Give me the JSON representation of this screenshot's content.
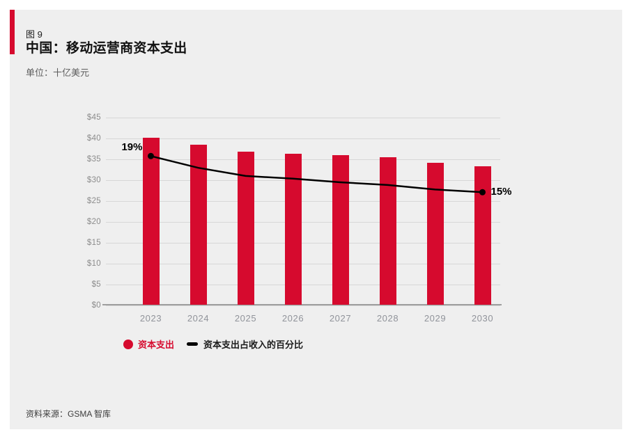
{
  "figure": {
    "label": "图 9",
    "title": "中国：移动运营商资本支出",
    "unit": "单位：十亿美元",
    "source": "资料来源：GSMA 智库",
    "accent_color": "#d60a2e",
    "panel_background": "#efefef"
  },
  "chart_data": {
    "type": "bar",
    "title": "中国：移动运营商资本支出",
    "ylabel": "单位：十亿美元",
    "categories": [
      "2023",
      "2024",
      "2025",
      "2026",
      "2027",
      "2028",
      "2029",
      "2030"
    ],
    "series": [
      {
        "name": "资本支出",
        "type": "bar",
        "color": "#d60a2e",
        "values": [
          40,
          38.3,
          36.7,
          36.2,
          35.8,
          35.4,
          34,
          33.2
        ]
      },
      {
        "name": "资本支出占收入的百分比",
        "type": "line",
        "color": "#000000",
        "values": [
          19,
          17.7,
          16.8,
          16.5,
          16.1,
          15.8,
          15.3,
          15
        ]
      }
    ],
    "ylim": [
      0,
      45
    ],
    "ytick_step": 5,
    "ytick_prefix": "$",
    "y2lim": [
      2.5,
      23.25
    ],
    "grid": true,
    "legend_position": "bottom",
    "annotations": [
      {
        "text": "19%",
        "series": 1,
        "index": 0
      },
      {
        "text": "15%",
        "series": 1,
        "index": 7
      }
    ]
  }
}
